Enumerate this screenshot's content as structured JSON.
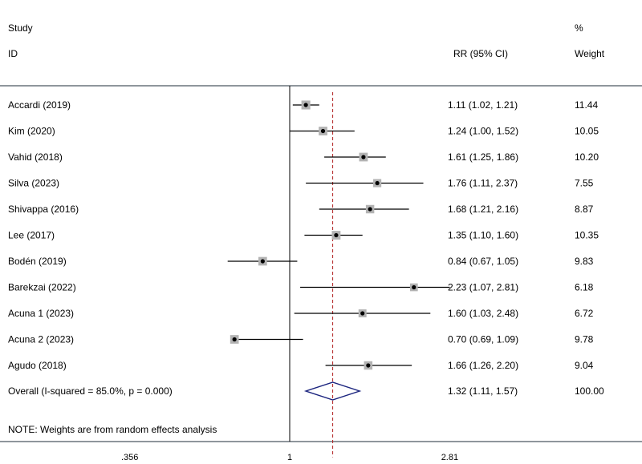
{
  "chart_data": {
    "type": "forest",
    "headers": {
      "study_line1": "Study",
      "study_line2": "ID",
      "effect": "RR (95% CI)",
      "weight_line1": "%",
      "weight_line2": "Weight"
    },
    "null_value": 1,
    "pooled_estimate": 1.32,
    "x_ticks": [
      {
        "value": 0.356,
        "label": ".356"
      },
      {
        "value": 1,
        "label": "1"
      },
      {
        "value": 2.81,
        "label": "2.81"
      }
    ],
    "xlim": [
      0.356,
      2.81
    ],
    "studies": [
      {
        "label": "Accardi (2019)",
        "rr": 1.11,
        "lower": 1.02,
        "upper": 1.21,
        "ci_text": "1.11 (1.02, 1.21)",
        "weight": 11.44,
        "weight_text": "11.44"
      },
      {
        "label": "Kim (2020)",
        "rr": 1.24,
        "lower": 1.0,
        "upper": 1.52,
        "ci_text": "1.24 (1.00, 1.52)",
        "weight": 10.05,
        "weight_text": "10.05"
      },
      {
        "label": "Vahid (2018)",
        "rr": 1.61,
        "lower": 1.25,
        "upper": 1.86,
        "ci_text": "1.61 (1.25, 1.86)",
        "weight": 10.2,
        "weight_text": "10.20"
      },
      {
        "label": "Silva (2023)",
        "rr": 1.76,
        "lower": 1.11,
        "upper": 2.37,
        "ci_text": "1.76 (1.11, 2.37)",
        "weight": 7.55,
        "weight_text": "7.55"
      },
      {
        "label": "Shivappa  (2016)",
        "rr": 1.68,
        "lower": 1.21,
        "upper": 2.16,
        "ci_text": "1.68 (1.21, 2.16)",
        "weight": 8.87,
        "weight_text": "8.87"
      },
      {
        "label": "Lee (2017)",
        "rr": 1.35,
        "lower": 1.1,
        "upper": 1.6,
        "ci_text": "1.35 (1.10, 1.60)",
        "weight": 10.35,
        "weight_text": "10.35"
      },
      {
        "label": "Bodén  (2019)",
        "rr": 0.84,
        "lower": 0.67,
        "upper": 1.05,
        "ci_text": "0.84 (0.67, 1.05)",
        "weight": 9.83,
        "weight_text": "9.83"
      },
      {
        "label": "Barekzai (2022)",
        "rr": 2.23,
        "lower": 1.07,
        "upper": 2.81,
        "ci_text": "2.23 (1.07, 2.81)",
        "weight": 6.18,
        "weight_text": "6.18"
      },
      {
        "label": "Acuna 1 (2023)",
        "rr": 1.6,
        "lower": 1.03,
        "upper": 2.48,
        "ci_text": "1.60 (1.03, 2.48)",
        "weight": 6.72,
        "weight_text": "6.72"
      },
      {
        "label": "Acuna 2 (2023)",
        "rr": 0.7,
        "lower": 0.69,
        "upper": 1.09,
        "ci_text": "0.70 (0.69, 1.09)",
        "weight": 9.78,
        "weight_text": "9.78"
      },
      {
        "label": "Agudo (2018)",
        "rr": 1.66,
        "lower": 1.26,
        "upper": 2.2,
        "ci_text": "1.66 (1.26, 2.20)",
        "weight": 9.04,
        "weight_text": "9.04"
      }
    ],
    "overall": {
      "label": "Overall  (I-squared = 85.0%, p = 0.000)",
      "rr": 1.32,
      "lower": 1.11,
      "upper": 1.57,
      "ci_text": "1.32 (1.11, 1.57)",
      "weight": 100.0,
      "weight_text": "100.00"
    },
    "note": "NOTE: Weights are from random effects analysis",
    "colors": {
      "text": "#000000",
      "box": "#b3b3b3",
      "line": "#000000",
      "diamond": "#1a237e",
      "pooled_line": "#b22222",
      "border": "#1f2d3a"
    }
  }
}
